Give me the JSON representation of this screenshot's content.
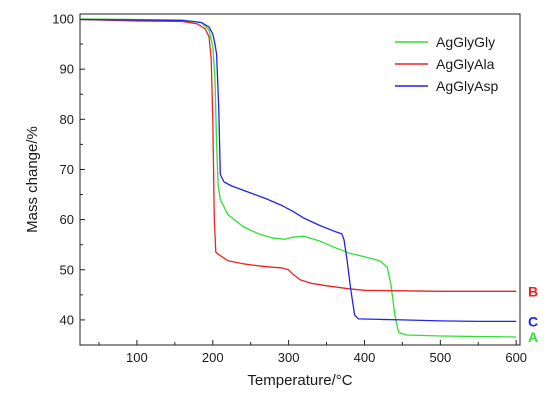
{
  "chart_data": {
    "type": "line",
    "xlabel": "Temperature/°C",
    "ylabel": "Mass change/%",
    "xlim": [
      25,
      605
    ],
    "ylim": [
      35,
      101
    ],
    "x_ticks": [
      100,
      200,
      300,
      400,
      500,
      600
    ],
    "y_ticks": [
      40,
      50,
      60,
      70,
      80,
      90,
      100
    ],
    "grid": false,
    "legend_position": "top-right",
    "series": [
      {
        "name": "AgGlyGly",
        "color": "#33dd33",
        "end_label": "A",
        "points": [
          [
            25,
            100
          ],
          [
            100,
            99.9
          ],
          [
            160,
            99.8
          ],
          [
            185,
            99.3
          ],
          [
            195,
            97.8
          ],
          [
            200,
            94.5
          ],
          [
            203,
            88
          ],
          [
            205,
            75
          ],
          [
            207,
            67
          ],
          [
            210,
            64
          ],
          [
            220,
            61
          ],
          [
            240,
            58.6
          ],
          [
            260,
            57.2
          ],
          [
            280,
            56.3
          ],
          [
            295,
            56.1
          ],
          [
            305,
            56.5
          ],
          [
            320,
            56.7
          ],
          [
            340,
            55.8
          ],
          [
            360,
            54.5
          ],
          [
            380,
            53.3
          ],
          [
            400,
            52.6
          ],
          [
            420,
            51.8
          ],
          [
            430,
            50.5
          ],
          [
            435,
            47
          ],
          [
            440,
            41
          ],
          [
            445,
            37.5
          ],
          [
            455,
            37
          ],
          [
            500,
            36.8
          ],
          [
            550,
            36.7
          ],
          [
            600,
            36.6
          ]
        ]
      },
      {
        "name": "AgGlyAla",
        "color": "#ee2222",
        "end_label": "B",
        "points": [
          [
            25,
            99.9
          ],
          [
            100,
            99.6
          ],
          [
            160,
            99.5
          ],
          [
            180,
            99
          ],
          [
            190,
            98
          ],
          [
            195,
            96.5
          ],
          [
            198,
            92
          ],
          [
            200,
            80
          ],
          [
            202,
            60
          ],
          [
            204,
            53.5
          ],
          [
            210,
            52.8
          ],
          [
            220,
            51.8
          ],
          [
            240,
            51.2
          ],
          [
            260,
            50.8
          ],
          [
            280,
            50.5
          ],
          [
            290,
            50.4
          ],
          [
            300,
            50
          ],
          [
            305,
            49.2
          ],
          [
            315,
            48
          ],
          [
            330,
            47.3
          ],
          [
            350,
            46.8
          ],
          [
            380,
            46.2
          ],
          [
            400,
            45.9
          ],
          [
            450,
            45.8
          ],
          [
            500,
            45.7
          ],
          [
            600,
            45.7
          ]
        ]
      },
      {
        "name": "AgGlyAsp",
        "color": "#2222ee",
        "end_label": "C",
        "points": [
          [
            25,
            99.9
          ],
          [
            100,
            99.8
          ],
          [
            160,
            99.7
          ],
          [
            185,
            99.3
          ],
          [
            195,
            98.4
          ],
          [
            200,
            97
          ],
          [
            203,
            95
          ],
          [
            205,
            93
          ],
          [
            208,
            82
          ],
          [
            210,
            69
          ],
          [
            215,
            67.5
          ],
          [
            225,
            66.7
          ],
          [
            250,
            65.3
          ],
          [
            270,
            64.2
          ],
          [
            290,
            62.9
          ],
          [
            305,
            61.7
          ],
          [
            320,
            60.3
          ],
          [
            340,
            58.9
          ],
          [
            360,
            57.7
          ],
          [
            370,
            57.2
          ],
          [
            373,
            56
          ],
          [
            377,
            52
          ],
          [
            382,
            46
          ],
          [
            387,
            41
          ],
          [
            392,
            40.2
          ],
          [
            420,
            40.1
          ],
          [
            450,
            40
          ],
          [
            500,
            39.8
          ],
          [
            550,
            39.7
          ],
          [
            600,
            39.7
          ]
        ]
      }
    ]
  }
}
